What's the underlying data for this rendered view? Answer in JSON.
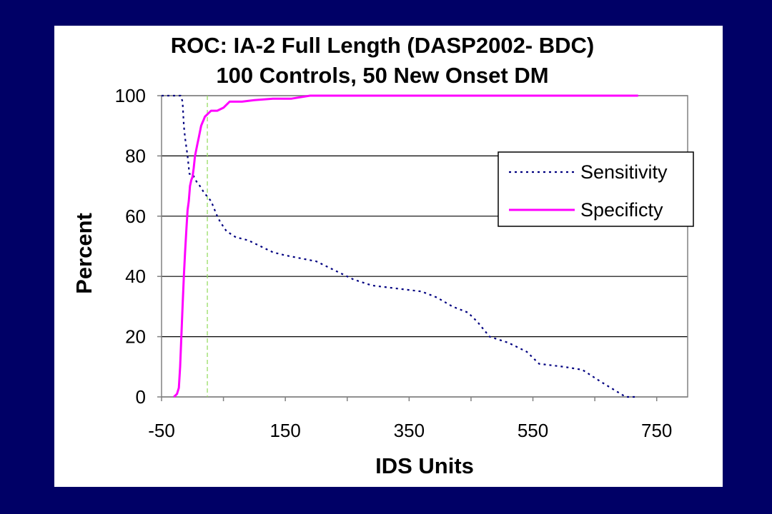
{
  "chart_data": {
    "type": "line",
    "title": "ROC: IA-2 Full Length (DASP2002- BDC)",
    "subtitle": "100 Controls, 50 New Onset DM",
    "xlabel": "IDS Units",
    "ylabel": "Percent",
    "xlim": [
      -50,
      800
    ],
    "ylim": [
      0,
      100
    ],
    "x_ticks": [
      "-50",
      "150",
      "350",
      "550",
      "750"
    ],
    "x_tick_values": [
      -50,
      150,
      350,
      550,
      750
    ],
    "y_ticks": [
      "0",
      "20",
      "40",
      "60",
      "80",
      "100"
    ],
    "y_tick_values": [
      0,
      20,
      40,
      60,
      80,
      100
    ],
    "grid": "horizontal",
    "legend_position": "right",
    "cutoff_line_x": 24,
    "series": [
      {
        "name": "Sensitivity",
        "style": "dotted",
        "color": "#000080",
        "x": [
          -50,
          -19,
          -16,
          -14,
          -12,
          -8,
          -5,
          0,
          5,
          8,
          12,
          18,
          22,
          30,
          40,
          45,
          55,
          70,
          90,
          110,
          130,
          150,
          175,
          200,
          230,
          260,
          290,
          330,
          370,
          395,
          420,
          445,
          460,
          480,
          510,
          540,
          560,
          600,
          630,
          660,
          700,
          720
        ],
        "y": [
          100,
          100,
          98,
          90,
          86,
          80,
          74,
          74,
          72,
          71,
          70,
          68,
          67,
          65,
          60,
          58,
          55,
          53,
          52,
          50,
          48,
          47,
          46,
          45,
          42,
          39,
          37,
          36,
          35,
          33,
          30,
          28,
          25,
          20,
          18,
          15,
          11,
          10,
          9,
          5,
          0,
          0
        ]
      },
      {
        "name": "Specificty",
        "style": "solid",
        "color": "#ff00ff",
        "x": [
          -30,
          -25,
          -22,
          -20,
          -18,
          -16,
          -14,
          -12,
          -10,
          -8,
          -6,
          -4,
          -2,
          0,
          2,
          4,
          6,
          8,
          10,
          12,
          14,
          16,
          18,
          20,
          25,
          30,
          40,
          50,
          60,
          70,
          80,
          100,
          130,
          160,
          190,
          250,
          400,
          600,
          720
        ],
        "y": [
          0,
          1,
          3,
          10,
          20,
          30,
          40,
          48,
          55,
          62,
          65,
          70,
          72,
          73,
          76,
          80,
          82,
          84,
          86,
          88,
          90,
          91,
          92,
          93,
          94,
          95,
          95,
          96,
          98,
          98,
          98,
          98.5,
          99,
          99,
          100,
          100,
          100,
          100,
          100
        ]
      }
    ]
  }
}
